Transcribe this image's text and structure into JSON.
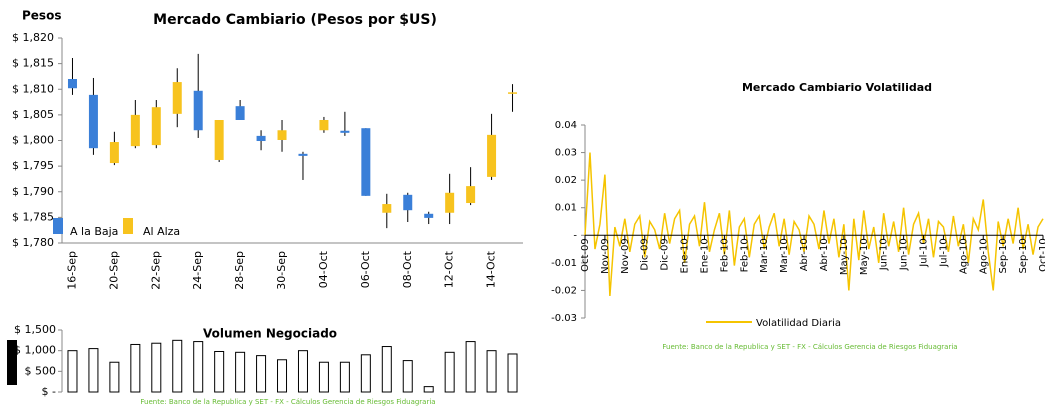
{
  "chart_data": [
    {
      "type": "candlestick",
      "title": "Mercado Cambiario (Pesos por $US)",
      "y_label": "Pesos",
      "categories": [
        "16-Sep",
        null,
        "20-Sep",
        null,
        "22-Sep",
        null,
        "24-Sep",
        null,
        "28-Sep",
        null,
        "30-Sep",
        null,
        "04-Oct",
        null,
        "06-Oct",
        null,
        "08-Oct",
        null,
        "12-Oct",
        null,
        "14-Oct",
        null
      ],
      "open": [
        1812.0,
        1808.9,
        1795.6,
        1798.9,
        1799.1,
        1805.2,
        1809.7,
        1796.2,
        1806.7,
        1800.9,
        1800.1,
        1797.4,
        1802.0,
        1801.9,
        1802.4,
        1785.9,
        1789.4,
        1785.7,
        1785.9,
        1787.8,
        1792.9,
        1809.3
      ],
      "high": [
        1816.1,
        1812.2,
        1801.7,
        1807.9,
        1807.9,
        1814.1,
        1816.9,
        1804.0,
        1807.9,
        1802.0,
        1804.0,
        1797.8,
        1804.6,
        1805.6,
        1802.4,
        1789.6,
        1789.8,
        1786.1,
        1793.5,
        1794.8,
        1805.2,
        1811.0
      ],
      "low": [
        1808.9,
        1797.2,
        1795.2,
        1798.5,
        1798.5,
        1802.6,
        1800.5,
        1795.8,
        1804.0,
        1798.1,
        1797.8,
        1792.3,
        1801.5,
        1800.9,
        1789.2,
        1782.9,
        1784.1,
        1783.7,
        1783.7,
        1787.4,
        1792.3,
        1805.6
      ],
      "close": [
        1810.2,
        1798.5,
        1799.7,
        1805.0,
        1806.5,
        1811.4,
        1802.0,
        1804.0,
        1804.0,
        1799.9,
        1802.0,
        1797.0,
        1804.0,
        1801.5,
        1789.2,
        1787.6,
        1786.4,
        1784.9,
        1789.8,
        1791.1,
        1801.1,
        1809.4
      ],
      "down_color": "#3a7fd8",
      "up_color": "#f7c31e",
      "legend": [
        {
          "name": "A la Baja",
          "color": "#3a7fd8"
        },
        {
          "name": "Al Alza",
          "color": "#f7c31e"
        }
      ],
      "ylim": [
        1780,
        1820
      ],
      "yticks": [
        {
          "value": 1780,
          "label": "$ 1,780"
        },
        {
          "value": 1785,
          "label": "$ 1,785"
        },
        {
          "value": 1790,
          "label": "$ 1,790"
        },
        {
          "value": 1795,
          "label": "$ 1,795"
        },
        {
          "value": 1800,
          "label": "$ 1,800"
        },
        {
          "value": 1805,
          "label": "$ 1,805"
        },
        {
          "value": 1810,
          "label": "$ 1,810"
        },
        {
          "value": 1815,
          "label": "$ 1,815"
        },
        {
          "value": 1820,
          "label": "$ 1,820"
        }
      ]
    },
    {
      "type": "bar",
      "title": "Volumen Negociado",
      "values": [
        1000,
        1050,
        720,
        1150,
        1180,
        1250,
        1220,
        980,
        960,
        880,
        780,
        1000,
        720,
        720,
        900,
        1100,
        760,
        130,
        960,
        1220,
        1000,
        920
      ],
      "color": "#ffffff",
      "edge_color": "#000000",
      "ylim": [
        0,
        1500
      ],
      "yticks": [
        {
          "value": 0,
          "label": "$ -"
        },
        {
          "value": 500,
          "label": "$ 500"
        },
        {
          "value": 1000,
          "label": "$ 1,000"
        },
        {
          "value": 1500,
          "label": "$ 1,500"
        }
      ],
      "footnote": "Fuente: Banco de la Republica y SET - FX - Cálculos Gerencia de Riesgos Fiduagraria"
    },
    {
      "type": "line",
      "title": "Mercado Cambiario Volatilidad",
      "categories": [
        "Oct-09",
        null,
        null,
        null,
        "Nov-09",
        null,
        null,
        null,
        "Nov-09",
        null,
        null,
        null,
        "Dic-09",
        null,
        null,
        null,
        "Dic-09",
        null,
        null,
        null,
        "Ene-10",
        null,
        null,
        null,
        "Ene-10",
        null,
        null,
        null,
        "Feb-10",
        null,
        null,
        null,
        "Feb-10",
        null,
        null,
        null,
        "Mar-10",
        null,
        null,
        null,
        "Mar-10",
        null,
        null,
        null,
        "Abr-10",
        null,
        null,
        null,
        "Abr-10",
        null,
        null,
        null,
        "May-10",
        null,
        null,
        null,
        "May-10",
        null,
        null,
        null,
        "Jun-10",
        null,
        null,
        null,
        "Jun-10",
        null,
        null,
        null,
        "Jul-10",
        null,
        null,
        null,
        "Jul-10",
        null,
        null,
        null,
        "Ago-10",
        null,
        null,
        null,
        "Ago-10",
        null,
        null,
        null,
        "Sep-10",
        null,
        null,
        null,
        "Sep-10",
        null,
        null,
        null,
        "Oct-10"
      ],
      "series": [
        {
          "name": "Volatilidad Diaria",
          "color": "#f5c400",
          "values": [
            0.0,
            0.03,
            -0.005,
            0.004,
            0.022,
            -0.022,
            0.003,
            -0.004,
            0.006,
            -0.006,
            0.004,
            0.007,
            -0.008,
            0.005,
            0.002,
            -0.005,
            0.008,
            -0.003,
            0.006,
            0.009,
            -0.01,
            0.004,
            0.007,
            -0.004,
            0.012,
            -0.006,
            0.002,
            0.008,
            -0.007,
            0.009,
            -0.011,
            0.003,
            0.006,
            -0.008,
            0.004,
            0.007,
            -0.005,
            0.003,
            0.008,
            -0.004,
            0.006,
            -0.007,
            0.005,
            0.002,
            -0.006,
            0.007,
            0.004,
            -0.005,
            0.009,
            -0.003,
            0.006,
            -0.008,
            0.004,
            -0.02,
            0.006,
            -0.009,
            0.009,
            -0.005,
            0.003,
            -0.01,
            0.008,
            -0.004,
            0.005,
            -0.006,
            0.01,
            -0.007,
            0.004,
            0.008,
            -0.003,
            0.006,
            -0.008,
            0.005,
            0.003,
            -0.006,
            0.007,
            -0.004,
            0.004,
            -0.01,
            0.006,
            0.002,
            0.013,
            -0.006,
            -0.02,
            0.005,
            -0.004,
            0.006,
            -0.003,
            0.01,
            -0.005,
            0.004,
            -0.007,
            0.003,
            0.006
          ]
        }
      ],
      "ylim": [
        -0.03,
        0.04
      ],
      "yticks": [
        -0.03,
        -0.02,
        -0.01,
        {
          "value": 0,
          "label": "-"
        },
        0.01,
        0.02,
        0.03,
        0.04
      ],
      "footnote": "Fuente: Banco de la Republica y SET - FX - Cálculos Gerencia de Riesgos Fiduagraria"
    }
  ]
}
